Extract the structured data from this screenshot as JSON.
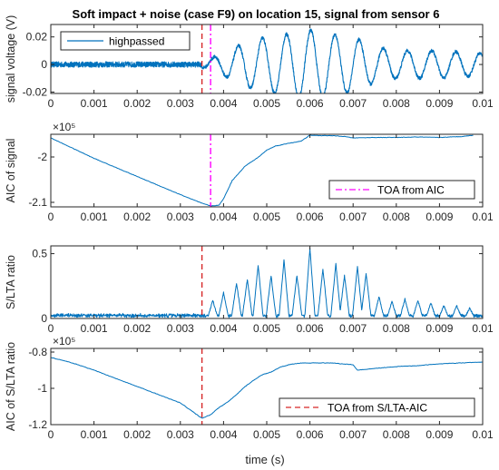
{
  "figure": {
    "title": "Soft impact + noise (case F9) on location 15, signal from sensor 6",
    "xlabel": "time (s)",
    "colors": {
      "signal": "#0072bd",
      "toa_aic": "#ff00ff",
      "toa_sta": "#d62728",
      "axes": "#262626",
      "background": "#ffffff"
    }
  },
  "chart_data": [
    {
      "type": "line",
      "title": "Soft impact + noise (case F9) on location 15, signal from sensor 6",
      "xlabel": "",
      "ylabel": "signal voltage (V)",
      "xlim": [
        0,
        0.01
      ],
      "ylim": [
        -0.021,
        0.029
      ],
      "xticks": [
        "0",
        "0.001",
        "0.002",
        "0.003",
        "0.004",
        "0.005",
        "0.006",
        "0.007",
        "0.008",
        "0.009",
        "0.01"
      ],
      "yticks": [
        "0.02",
        "0",
        "-0.02"
      ],
      "ytick_values": [
        0.02,
        0,
        -0.02
      ],
      "exponent_label": "",
      "legend": {
        "entries": [
          "highpassed"
        ],
        "position": "top-left"
      },
      "vlines": [
        {
          "x": 0.0035,
          "color": "#d62728",
          "style": "dashed"
        },
        {
          "x": 0.0037,
          "color": "#ff00ff",
          "style": "dashdot"
        }
      ],
      "series": [
        {
          "name": "highpassed",
          "color": "#0072bd",
          "description": "noise about 0 until 0.0035 s, then a decaying oscillation",
          "envelope": {
            "t": [
              0,
              0.0035,
              0.004,
              0.0045,
              0.005,
              0.0055,
              0.006,
              0.0065,
              0.007,
              0.0075,
              0.008,
              0.0085,
              0.009,
              0.0095,
              0.01
            ],
            "amp": [
              0.002,
              0.002,
              0.008,
              0.016,
              0.02,
              0.022,
              0.025,
              0.022,
              0.02,
              0.013,
              0.01,
              0.01,
              0.01,
              0.009,
              0.008
            ]
          },
          "period": 0.00056,
          "noise": 0.0025
        }
      ]
    },
    {
      "type": "line",
      "title": "",
      "xlabel": "",
      "ylabel": "AIC of signal",
      "xlim": [
        0,
        0.01
      ],
      "ylim": [
        -211000,
        -195000
      ],
      "xticks": [
        "0",
        "0.001",
        "0.002",
        "0.003",
        "0.004",
        "0.005",
        "0.006",
        "0.007",
        "0.008",
        "0.009",
        "0.01"
      ],
      "yticks": [
        "-2",
        "-2.1"
      ],
      "ytick_values": [
        -200000,
        -210000
      ],
      "exponent_label": "×10⁵",
      "legend": {
        "entries": [
          "TOA from AIC"
        ],
        "position": "bottom-right"
      },
      "vlines": [
        {
          "x": 0.0037,
          "color": "#ff00ff",
          "style": "dashdot"
        }
      ],
      "series": [
        {
          "name": "",
          "color": "#0072bd",
          "x": [
            0,
            0.001,
            0.002,
            0.003,
            0.0035,
            0.0037,
            0.0039,
            0.004,
            0.0042,
            0.0045,
            0.0048,
            0.005,
            0.0052,
            0.0055,
            0.0058,
            0.006,
            0.0062,
            0.0065,
            0.0068,
            0.007,
            0.0075,
            0.008,
            0.0085,
            0.009,
            0.0095,
            0.0098
          ],
          "y": [
            -195800,
            -200300,
            -204300,
            -208300,
            -210200,
            -210800,
            -210600,
            -209200,
            -205200,
            -202000,
            -200100,
            -198500,
            -197600,
            -197000,
            -196500,
            -195200,
            -195300,
            -195300,
            -195500,
            -195800,
            -195700,
            -195700,
            -195600,
            -195700,
            -195500,
            -195200
          ]
        }
      ]
    },
    {
      "type": "line",
      "title": "",
      "xlabel": "",
      "ylabel": "S/LTA ratio",
      "xlim": [
        0,
        0.01
      ],
      "ylim": [
        0,
        0.56
      ],
      "xticks": [
        "0",
        "0.001",
        "0.002",
        "0.003",
        "0.004",
        "0.005",
        "0.006",
        "0.007",
        "0.008",
        "0.009",
        "0.01"
      ],
      "yticks": [
        "0.5",
        "0"
      ],
      "ytick_values": [
        0.5,
        0
      ],
      "exponent_label": "",
      "legend": null,
      "vlines": [
        {
          "x": 0.0035,
          "color": "#d62728",
          "style": "dashed"
        }
      ],
      "series": [
        {
          "name": "",
          "color": "#0072bd",
          "description": "low flat ratio until 0.0035 s, then one peak per half-period",
          "peaks": {
            "x": [
              0.00375,
              0.004,
              0.0043,
              0.00455,
              0.0048,
              0.0051,
              0.0054,
              0.0057,
              0.006,
              0.0063,
              0.0066,
              0.0068,
              0.0071,
              0.0073,
              0.0076,
              0.0079,
              0.0082,
              0.0085,
              0.0088,
              0.0091,
              0.0094,
              0.0097
            ],
            "y": [
              0.14,
              0.2,
              0.27,
              0.3,
              0.41,
              0.33,
              0.45,
              0.33,
              0.54,
              0.38,
              0.42,
              0.33,
              0.4,
              0.35,
              0.17,
              0.13,
              0.15,
              0.14,
              0.12,
              0.1,
              0.1,
              0.08
            ]
          },
          "baseline": 0.03
        }
      ]
    },
    {
      "type": "line",
      "title": "",
      "xlabel": "time (s)",
      "ylabel": "AIC of S/LTA ratio",
      "xlim": [
        0,
        0.01
      ],
      "ylim": [
        -120000,
        -78000
      ],
      "xticks": [
        "0",
        "0.001",
        "0.002",
        "0.003",
        "0.004",
        "0.005",
        "0.006",
        "0.007",
        "0.008",
        "0.009",
        "0.01"
      ],
      "yticks": [
        "-0.8",
        "-1",
        "-1.2"
      ],
      "ytick_values": [
        -80000,
        -100000,
        -120000
      ],
      "exponent_label": "×10⁵",
      "legend": {
        "entries": [
          "TOA from S/LTA-AIC"
        ],
        "position": "bottom-right"
      },
      "vlines": [
        {
          "x": 0.0035,
          "color": "#d62728",
          "style": "dashed"
        }
      ],
      "series": [
        {
          "name": "",
          "color": "#0072bd",
          "x": [
            0,
            0.0005,
            0.001,
            0.0015,
            0.002,
            0.0025,
            0.003,
            0.0035,
            0.0037,
            0.0039,
            0.0041,
            0.0043,
            0.0045,
            0.0047,
            0.0049,
            0.0051,
            0.0053,
            0.0055,
            0.0058,
            0.006,
            0.0065,
            0.007,
            0.0071,
            0.0075,
            0.008,
            0.0085,
            0.009,
            0.0095,
            0.01
          ],
          "y": [
            -83000,
            -86000,
            -90000,
            -94500,
            -99000,
            -103500,
            -108000,
            -116500,
            -114500,
            -110500,
            -107500,
            -103500,
            -99000,
            -95500,
            -92500,
            -91000,
            -88500,
            -87000,
            -86000,
            -86000,
            -86000,
            -87000,
            -90000,
            -89000,
            -88000,
            -87500,
            -86500,
            -86000,
            -85500
          ]
        }
      ]
    }
  ]
}
